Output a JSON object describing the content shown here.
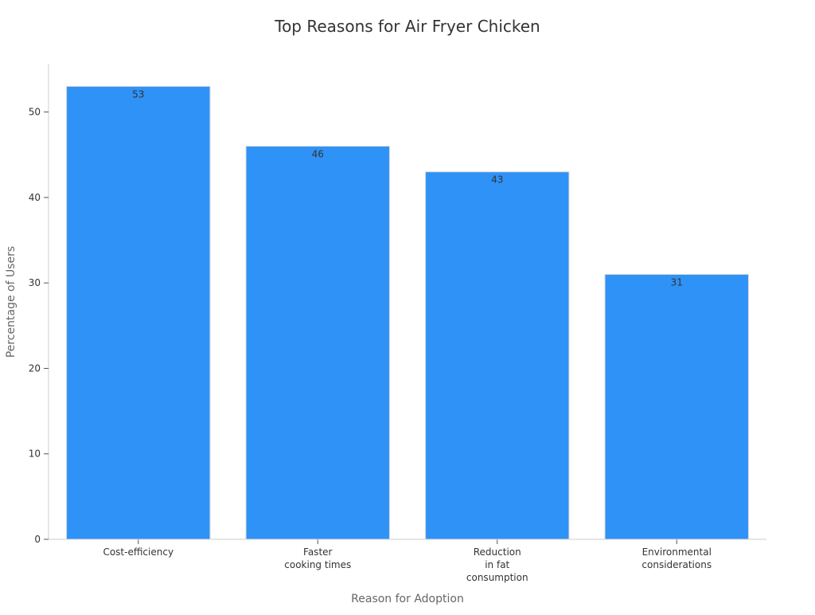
{
  "chart_data": {
    "type": "bar",
    "title": "Top Reasons for Air Fryer Chicken",
    "xlabel": "Reason for Adoption",
    "ylabel": "Percentage of Users",
    "categories": [
      [
        "Cost-efficiency"
      ],
      [
        "Faster",
        "cooking times"
      ],
      [
        "Reduction",
        "in fat",
        "consumption"
      ],
      [
        "Environmental",
        "considerations"
      ]
    ],
    "values": [
      53,
      46,
      43,
      31
    ],
    "ylim": [
      0,
      55.65
    ],
    "yticks": [
      0,
      10,
      20,
      30,
      40,
      50
    ],
    "bar_color": "#2f92f6",
    "bar_edge_color": "#d9d9d9",
    "text_color": "#333333",
    "axis_label_color": "#666666",
    "axis_line_color": "#cccccc",
    "grid": false,
    "legend": "none",
    "show_data_labels": true
  }
}
